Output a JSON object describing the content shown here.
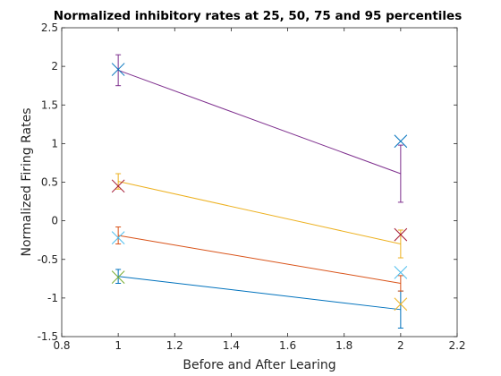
{
  "chart_data": {
    "type": "line",
    "title": "Normalized inhibitory rates at 25, 50, 75 and 95 percentiles",
    "xlabel": "Before and After Learing",
    "ylabel": "Normalized Firing Rates",
    "xlim": [
      0.8,
      2.2
    ],
    "ylim": [
      -1.5,
      2.5
    ],
    "xticks": [
      0.8,
      1,
      1.2,
      1.4,
      1.6,
      1.8,
      2,
      2.2
    ],
    "yticks": [
      -1.5,
      -1,
      -0.5,
      0,
      0.5,
      1,
      1.5,
      2,
      2.5
    ],
    "xtick_labels": [
      "0.8",
      "1",
      "1.2",
      "1.4",
      "1.6",
      "1.8",
      "2",
      "2.2"
    ],
    "ytick_labels": [
      "-1.5",
      "-1",
      "-0.5",
      "0",
      "0.5",
      "1",
      "1.5",
      "2",
      "2.5"
    ],
    "grid": false,
    "x": [
      1,
      2
    ],
    "series": [
      {
        "color": "#0072BD",
        "values": [
          -0.72,
          -1.15
        ],
        "err": [
          0.09,
          0.24
        ]
      },
      {
        "color": "#D95319",
        "values": [
          -0.19,
          -0.81
        ],
        "err": [
          0.11,
          0.1
        ]
      },
      {
        "color": "#EDB120",
        "values": [
          0.51,
          -0.3
        ],
        "err": [
          0.1,
          0.18
        ]
      },
      {
        "color": "#7E2F8E",
        "values": [
          1.95,
          0.61
        ],
        "err": [
          0.2,
          0.37
        ]
      }
    ],
    "markers": [
      {
        "x": 1,
        "y": 1.96,
        "color": "#0072BD"
      },
      {
        "x": 1,
        "y": 0.45,
        "color": "#A2142F"
      },
      {
        "x": 1,
        "y": -0.22,
        "color": "#4DBEEE"
      },
      {
        "x": 1,
        "y": -0.73,
        "color": "#77AC30"
      },
      {
        "x": 2,
        "y": 1.03,
        "color": "#0072BD"
      },
      {
        "x": 2,
        "y": -0.18,
        "color": "#A2142F"
      },
      {
        "x": 2,
        "y": -0.67,
        "color": "#4DBEEE"
      },
      {
        "x": 2,
        "y": -1.08,
        "color": "#EDB120"
      }
    ]
  }
}
